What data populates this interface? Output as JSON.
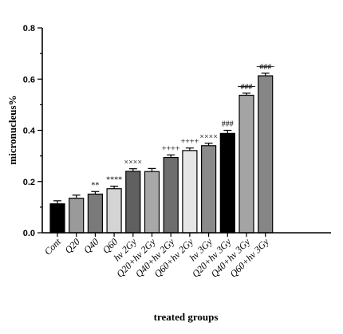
{
  "chart_data": {
    "type": "bar",
    "title": "",
    "xlabel": "treated groups",
    "ylabel": "micronucleus%",
    "ylim": [
      0,
      0.8
    ],
    "yticks": [
      "0.0",
      "0.2",
      "0.4",
      "0.6",
      "0.8"
    ],
    "grid": false,
    "categories": [
      "Cont",
      "Q20",
      "Q40",
      "Q60",
      "hv 2Gy",
      "Q20+hv 2Gy",
      "Q40+hv 2Gy",
      "Q60+hv 2Gy",
      "hv 3Gy",
      "Q20+hv 3Gy",
      "Q40+hv 3Gy",
      "Q60+hv 3Gy"
    ],
    "values": [
      0.113,
      0.135,
      0.151,
      0.172,
      0.24,
      0.239,
      0.294,
      0.321,
      0.34,
      0.388,
      0.537,
      0.613
    ],
    "errors": [
      0.012,
      0.012,
      0.01,
      0.01,
      0.01,
      0.012,
      0.01,
      0.01,
      0.01,
      0.012,
      0.008,
      0.01
    ],
    "annotations": [
      "",
      "",
      "**",
      "****",
      "××××",
      "",
      "++++",
      "++++",
      "××××",
      "###",
      "###",
      "###"
    ],
    "bar_colors": [
      "#000000",
      "#9a9a9a",
      "#7a7a7a",
      "#d4d4d4",
      "#606060",
      "#a8a8a8",
      "#6e6e6e",
      "#e6e6e6",
      "#8a8a8a",
      "#000000",
      "#a4a4a4",
      "#868686"
    ],
    "strike_annotations": [
      false,
      false,
      false,
      false,
      false,
      false,
      false,
      false,
      false,
      false,
      true,
      true
    ]
  }
}
